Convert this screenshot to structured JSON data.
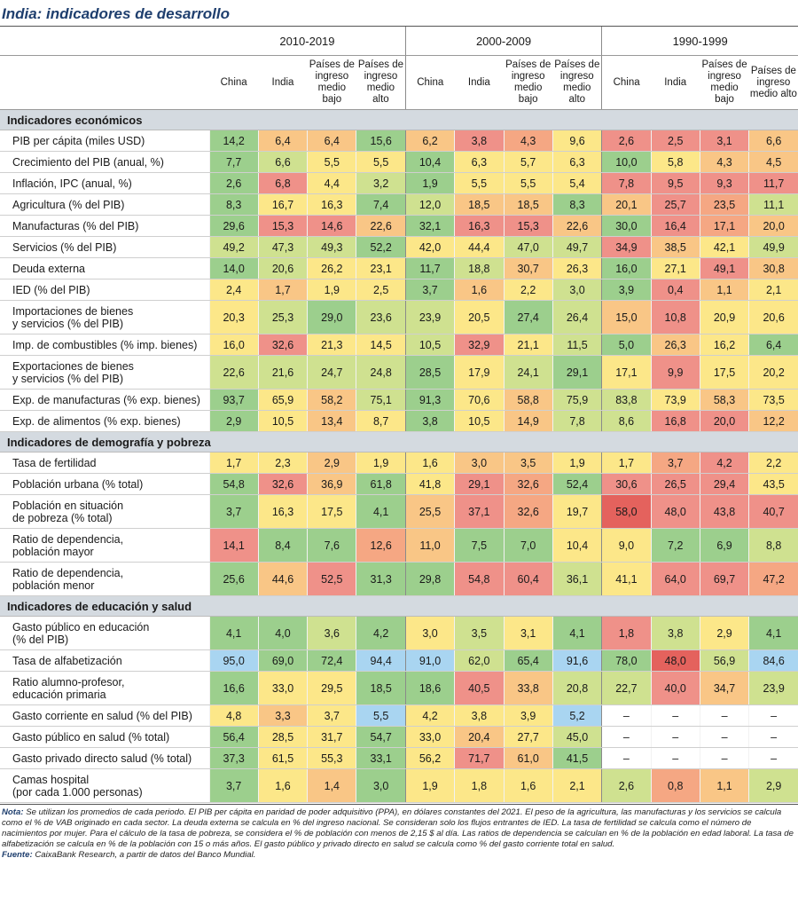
{
  "title": "India: indicadores de desarrollo",
  "period_headers": [
    "2010-2019",
    "2000-2009",
    "1990-1999"
  ],
  "column_headers": [
    "China",
    "India",
    "Países de ingreso medio bajo",
    "Países de ingreso medio alto"
  ],
  "sections": [
    {
      "title": "Indicadores económicos",
      "rows": [
        {
          "label": "PIB per cápita (miles USD)",
          "values": [
            "14,2",
            "6,4",
            "6,4",
            "15,6",
            "6,2",
            "3,8",
            "4,3",
            "9,6",
            "2,6",
            "2,5",
            "3,1",
            "6,6"
          ],
          "colors": [
            "#9ccf8d",
            "#f9c686",
            "#f9c686",
            "#9ccf8d",
            "#f9c686",
            "#ef9189",
            "#f5a783",
            "#fce789",
            "#ef9189",
            "#ef9189",
            "#ef9189",
            "#f9c686"
          ]
        },
        {
          "label": "Crecimiento del PIB (anual, %)",
          "values": [
            "7,7",
            "6,6",
            "5,5",
            "5,5",
            "10,4",
            "6,3",
            "5,7",
            "6,3",
            "10,0",
            "5,8",
            "4,3",
            "4,5"
          ],
          "colors": [
            "#9ccf8d",
            "#cfe190",
            "#fce789",
            "#fce789",
            "#9ccf8d",
            "#fce789",
            "#fce789",
            "#fce789",
            "#9ccf8d",
            "#fce789",
            "#f9c686",
            "#f9c686"
          ]
        },
        {
          "label": "Inflación, IPC (anual, %)",
          "values": [
            "2,6",
            "6,8",
            "4,4",
            "3,2",
            "1,9",
            "5,5",
            "5,5",
            "5,4",
            "7,8",
            "9,5",
            "9,3",
            "11,7"
          ],
          "colors": [
            "#9ccf8d",
            "#ef9189",
            "#fce789",
            "#cfe190",
            "#9ccf8d",
            "#fce789",
            "#fce789",
            "#fce789",
            "#ef9189",
            "#ef9189",
            "#ef9189",
            "#ef9189"
          ]
        },
        {
          "label": "Agricultura (% del PIB)",
          "values": [
            "8,3",
            "16,7",
            "16,3",
            "7,4",
            "12,0",
            "18,5",
            "18,5",
            "8,3",
            "20,1",
            "25,7",
            "23,5",
            "11,1"
          ],
          "colors": [
            "#9ccf8d",
            "#fce789",
            "#fce789",
            "#9ccf8d",
            "#cfe190",
            "#f9c686",
            "#f9c686",
            "#9ccf8d",
            "#f9c686",
            "#ef9189",
            "#f5a783",
            "#cfe190"
          ]
        },
        {
          "label": "Manufacturas (% del PIB)",
          "values": [
            "29,6",
            "15,3",
            "14,6",
            "22,6",
            "32,1",
            "16,3",
            "15,3",
            "22,6",
            "30,0",
            "16,4",
            "17,1",
            "20,0"
          ],
          "colors": [
            "#9ccf8d",
            "#ef9189",
            "#ef9189",
            "#f9c686",
            "#9ccf8d",
            "#ef9189",
            "#ef9189",
            "#f9c686",
            "#9ccf8d",
            "#ef9189",
            "#f5a783",
            "#f9c686"
          ]
        },
        {
          "label": "Servicios (% del PIB)",
          "values": [
            "49,2",
            "47,3",
            "49,3",
            "52,2",
            "42,0",
            "44,4",
            "47,0",
            "49,7",
            "34,9",
            "38,5",
            "42,1",
            "49,9"
          ],
          "colors": [
            "#cfe190",
            "#cfe190",
            "#cfe190",
            "#9ccf8d",
            "#fce789",
            "#fce789",
            "#cfe190",
            "#cfe190",
            "#ef9189",
            "#f9c686",
            "#fce789",
            "#cfe190"
          ]
        },
        {
          "label": "Deuda externa",
          "values": [
            "14,0",
            "20,6",
            "26,2",
            "23,1",
            "11,7",
            "18,8",
            "30,7",
            "26,3",
            "16,0",
            "27,1",
            "49,1",
            "30,8"
          ],
          "colors": [
            "#9ccf8d",
            "#cfe190",
            "#fce789",
            "#fce789",
            "#9ccf8d",
            "#cfe190",
            "#f9c686",
            "#fce789",
            "#9ccf8d",
            "#fce789",
            "#ef9189",
            "#f9c686"
          ]
        },
        {
          "label": "IED (% del PIB)",
          "values": [
            "2,4",
            "1,7",
            "1,9",
            "2,5",
            "3,7",
            "1,6",
            "2,2",
            "3,0",
            "3,9",
            "0,4",
            "1,1",
            "2,1"
          ],
          "colors": [
            "#fce789",
            "#f9c686",
            "#fce789",
            "#fce789",
            "#9ccf8d",
            "#f9c686",
            "#fce789",
            "#cfe190",
            "#9ccf8d",
            "#ef9189",
            "#f9c686",
            "#fce789"
          ]
        },
        {
          "label": "Importaciones de bienes\ny servicios (% del PIB)",
          "values": [
            "20,3",
            "25,3",
            "29,0",
            "23,6",
            "23,9",
            "20,5",
            "27,4",
            "26,4",
            "15,0",
            "10,8",
            "20,9",
            "20,6"
          ],
          "colors": [
            "#fce789",
            "#cfe190",
            "#9ccf8d",
            "#cfe190",
            "#cfe190",
            "#fce789",
            "#9ccf8d",
            "#cfe190",
            "#f9c686",
            "#ef9189",
            "#fce789",
            "#fce789"
          ]
        },
        {
          "label": "Imp. de combustibles (% imp. bienes)",
          "values": [
            "16,0",
            "32,6",
            "21,3",
            "14,5",
            "10,5",
            "32,9",
            "21,1",
            "11,5",
            "5,0",
            "26,3",
            "16,2",
            "6,4"
          ],
          "colors": [
            "#fce789",
            "#ef9189",
            "#fce789",
            "#fce789",
            "#cfe190",
            "#ef9189",
            "#fce789",
            "#cfe190",
            "#9ccf8d",
            "#f9c686",
            "#fce789",
            "#9ccf8d"
          ]
        },
        {
          "label": "Exportaciones de bienes\ny servicios (% del PIB)",
          "values": [
            "22,6",
            "21,6",
            "24,7",
            "24,8",
            "28,5",
            "17,9",
            "24,1",
            "29,1",
            "17,1",
            "9,9",
            "17,5",
            "20,2"
          ],
          "colors": [
            "#cfe190",
            "#cfe190",
            "#cfe190",
            "#cfe190",
            "#9ccf8d",
            "#fce789",
            "#cfe190",
            "#9ccf8d",
            "#fce789",
            "#ef9189",
            "#fce789",
            "#fce789"
          ]
        },
        {
          "label": "Exp. de manufacturas (% exp. bienes)",
          "values": [
            "93,7",
            "65,9",
            "58,2",
            "75,1",
            "91,3",
            "70,6",
            "58,8",
            "75,9",
            "83,8",
            "73,9",
            "58,3",
            "73,5"
          ],
          "colors": [
            "#9ccf8d",
            "#fce789",
            "#f9c686",
            "#cfe190",
            "#9ccf8d",
            "#fce789",
            "#f9c686",
            "#cfe190",
            "#cfe190",
            "#fce789",
            "#f9c686",
            "#fce789"
          ]
        },
        {
          "label": "Exp. de alimentos (% exp. bienes)",
          "values": [
            "2,9",
            "10,5",
            "13,4",
            "8,7",
            "3,8",
            "10,5",
            "14,9",
            "7,8",
            "8,6",
            "16,8",
            "20,0",
            "12,2"
          ],
          "colors": [
            "#9ccf8d",
            "#fce789",
            "#f9c686",
            "#fce789",
            "#9ccf8d",
            "#fce789",
            "#f9c686",
            "#cfe190",
            "#cfe190",
            "#ef9189",
            "#ef9189",
            "#f9c686"
          ]
        }
      ]
    },
    {
      "title": "Indicadores de demografía y pobreza",
      "rows": [
        {
          "label": "Tasa de fertilidad",
          "values": [
            "1,7",
            "2,3",
            "2,9",
            "1,9",
            "1,6",
            "3,0",
            "3,5",
            "1,9",
            "1,7",
            "3,7",
            "4,2",
            "2,2"
          ],
          "colors": [
            "#fce789",
            "#fce789",
            "#f9c686",
            "#fce789",
            "#fce789",
            "#f9c686",
            "#f9c686",
            "#fce789",
            "#fce789",
            "#f5a783",
            "#ef9189",
            "#fce789"
          ]
        },
        {
          "label": "Población urbana (% total)",
          "values": [
            "54,8",
            "32,6",
            "36,9",
            "61,8",
            "41,8",
            "29,1",
            "32,6",
            "52,4",
            "30,6",
            "26,5",
            "29,4",
            "43,5"
          ],
          "colors": [
            "#9ccf8d",
            "#ef9189",
            "#f9c686",
            "#9ccf8d",
            "#fce789",
            "#ef9189",
            "#f5a783",
            "#9ccf8d",
            "#ef9189",
            "#ef9189",
            "#ef9189",
            "#fce789"
          ]
        },
        {
          "label": "Población en situación\nde pobreza (% total)",
          "values": [
            "3,7",
            "16,3",
            "17,5",
            "4,1",
            "25,5",
            "37,1",
            "32,6",
            "19,7",
            "58,0",
            "48,0",
            "43,8",
            "40,7"
          ],
          "colors": [
            "#9ccf8d",
            "#fce789",
            "#fce789",
            "#9ccf8d",
            "#f9c686",
            "#ef9189",
            "#f5a783",
            "#fce789",
            "#e4625d",
            "#ef9189",
            "#ef9189",
            "#ef9189"
          ]
        },
        {
          "label": "Ratio de dependencia,\npoblación mayor",
          "values": [
            "14,1",
            "8,4",
            "7,6",
            "12,6",
            "11,0",
            "7,5",
            "7,0",
            "10,4",
            "9,0",
            "7,2",
            "6,9",
            "8,8"
          ],
          "colors": [
            "#ef9189",
            "#9ccf8d",
            "#9ccf8d",
            "#f5a783",
            "#f9c686",
            "#9ccf8d",
            "#9ccf8d",
            "#fce789",
            "#fce789",
            "#9ccf8d",
            "#9ccf8d",
            "#cfe190"
          ]
        },
        {
          "label": "Ratio de dependencia,\npoblación menor",
          "values": [
            "25,6",
            "44,6",
            "52,5",
            "31,3",
            "29,8",
            "54,8",
            "60,4",
            "36,1",
            "41,1",
            "64,0",
            "69,7",
            "47,2"
          ],
          "colors": [
            "#9ccf8d",
            "#f9c686",
            "#ef9189",
            "#9ccf8d",
            "#9ccf8d",
            "#ef9189",
            "#ef9189",
            "#cfe190",
            "#fce789",
            "#ef9189",
            "#ef9189",
            "#f5a783"
          ]
        }
      ]
    },
    {
      "title": "Indicadores de educación y salud",
      "rows": [
        {
          "label": "Gasto público en educación\n(% del PIB)",
          "values": [
            "4,1",
            "4,0",
            "3,6",
            "4,2",
            "3,0",
            "3,5",
            "3,1",
            "4,1",
            "1,8",
            "3,8",
            "2,9",
            "4,1"
          ],
          "colors": [
            "#9ccf8d",
            "#9ccf8d",
            "#cfe190",
            "#9ccf8d",
            "#fce789",
            "#cfe190",
            "#fce789",
            "#9ccf8d",
            "#ef9189",
            "#cfe190",
            "#fce789",
            "#9ccf8d"
          ]
        },
        {
          "label": "Tasa de alfabetización",
          "values": [
            "95,0",
            "69,0",
            "72,4",
            "94,4",
            "91,0",
            "62,0",
            "65,4",
            "91,6",
            "78,0",
            "48,0",
            "56,9",
            "84,6"
          ],
          "colors": [
            "#a9d5f1",
            "#9ccf8d",
            "#9ccf8d",
            "#a9d5f1",
            "#a9d5f1",
            "#cfe190",
            "#9ccf8d",
            "#a9d5f1",
            "#9ccf8d",
            "#e4625d",
            "#cfe190",
            "#a9d5f1"
          ]
        },
        {
          "label": "Ratio alumno-profesor,\neducación primaria",
          "values": [
            "16,6",
            "33,0",
            "29,5",
            "18,5",
            "18,6",
            "40,5",
            "33,8",
            "20,8",
            "22,7",
            "40,0",
            "34,7",
            "23,9"
          ],
          "colors": [
            "#9ccf8d",
            "#fce789",
            "#fce789",
            "#9ccf8d",
            "#9ccf8d",
            "#ef9189",
            "#f9c686",
            "#cfe190",
            "#cfe190",
            "#ef9189",
            "#f9c686",
            "#cfe190"
          ]
        },
        {
          "label": "Gasto corriente en salud (% del PIB)",
          "values": [
            "4,8",
            "3,3",
            "3,7",
            "5,5",
            "4,2",
            "3,8",
            "3,9",
            "5,2",
            "–",
            "–",
            "–",
            "–"
          ],
          "colors": [
            "#fce789",
            "#f9c686",
            "#fce789",
            "#a9d5f1",
            "#fce789",
            "#fce789",
            "#fce789",
            "#a9d5f1",
            "#ffffff",
            "#ffffff",
            "#ffffff",
            "#ffffff"
          ]
        },
        {
          "label": "Gasto público en salud (% total)",
          "values": [
            "56,4",
            "28,5",
            "31,7",
            "54,7",
            "33,0",
            "20,4",
            "27,7",
            "45,0",
            "–",
            "–",
            "–",
            "–"
          ],
          "colors": [
            "#9ccf8d",
            "#fce789",
            "#fce789",
            "#9ccf8d",
            "#fce789",
            "#f9c686",
            "#fce789",
            "#cfe190",
            "#ffffff",
            "#ffffff",
            "#ffffff",
            "#ffffff"
          ]
        },
        {
          "label": "Gasto privado directo salud (% total)",
          "values": [
            "37,3",
            "61,5",
            "55,3",
            "33,1",
            "56,2",
            "71,7",
            "61,0",
            "41,5",
            "–",
            "–",
            "–",
            "–"
          ],
          "colors": [
            "#9ccf8d",
            "#fce789",
            "#fce789",
            "#9ccf8d",
            "#fce789",
            "#ef9189",
            "#f9c686",
            "#9ccf8d",
            "#ffffff",
            "#ffffff",
            "#ffffff",
            "#ffffff"
          ]
        },
        {
          "label": "Camas hospital\n(por cada 1.000 personas)",
          "values": [
            "3,7",
            "1,6",
            "1,4",
            "3,0",
            "1,9",
            "1,8",
            "1,6",
            "2,1",
            "2,6",
            "0,8",
            "1,1",
            "2,9"
          ],
          "colors": [
            "#9ccf8d",
            "#fce789",
            "#f9c686",
            "#9ccf8d",
            "#fce789",
            "#fce789",
            "#fce789",
            "#fce789",
            "#cfe190",
            "#f5a783",
            "#f9c686",
            "#cfe190"
          ]
        }
      ]
    }
  ],
  "note_label": "Nota:",
  "note": "Se utilizan los promedios de cada periodo. El PIB per cápita en paridad de poder adquisitivo (PPA), en dólares constantes del 2021. El peso de la agricultura, las manufacturas y los servicios se calcula como el % de VAB originado en cada sector. La deuda externa se calcula en % del ingreso nacional. Se consideran solo los flujos entrantes de IED. La tasa de fertilidad se calcula como el número de nacimientos por mujer. Para el cálculo de la tasa de pobreza, se considera el % de población con menos de 2,15 $ al día. Las ratios de dependencia se calculan en % de la población en edad laboral. La tasa de alfabetización se calcula en % de la población con 15 o más años. El gasto público y privado directo en salud se calcula como % del gasto corriente total en salud.",
  "source_label": "Fuente:",
  "source": "CaixaBank Research, a partir de datos del Banco Mundial."
}
